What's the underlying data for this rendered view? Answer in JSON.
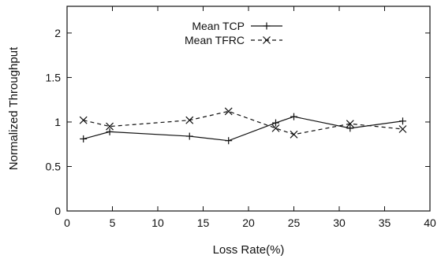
{
  "chart_data": {
    "type": "line",
    "title": "",
    "xlabel": "Loss Rate(%)",
    "ylabel": "Normalized Throughput",
    "xlim": [
      0,
      40
    ],
    "ylim": [
      0,
      2.3
    ],
    "xticks": [
      0,
      5,
      10,
      15,
      20,
      25,
      30,
      35,
      40
    ],
    "xtick_labels": [
      "0",
      "5",
      "10",
      "15",
      "20",
      "25",
      "30",
      "35",
      "40"
    ],
    "yticks": [
      0,
      0.5,
      1,
      1.5,
      2
    ],
    "ytick_labels": [
      "0",
      "0.5",
      "1",
      "1.5",
      "2"
    ],
    "grid": false,
    "legend_position": "top-center",
    "series": [
      {
        "name": "Mean TCP",
        "marker": "plus",
        "line_style": "solid",
        "x": [
          1.8,
          4.7,
          13.5,
          17.8,
          23.0,
          25.0,
          31.2,
          37.0
        ],
        "y": [
          0.81,
          0.89,
          0.84,
          0.79,
          0.99,
          1.06,
          0.93,
          1.01
        ]
      },
      {
        "name": "Mean TFRC",
        "marker": "cross",
        "line_style": "dashed",
        "x": [
          1.8,
          4.7,
          13.5,
          17.8,
          23.0,
          25.0,
          31.2,
          37.0
        ],
        "y": [
          1.02,
          0.95,
          1.02,
          1.12,
          0.93,
          0.86,
          0.98,
          0.92
        ]
      }
    ]
  }
}
